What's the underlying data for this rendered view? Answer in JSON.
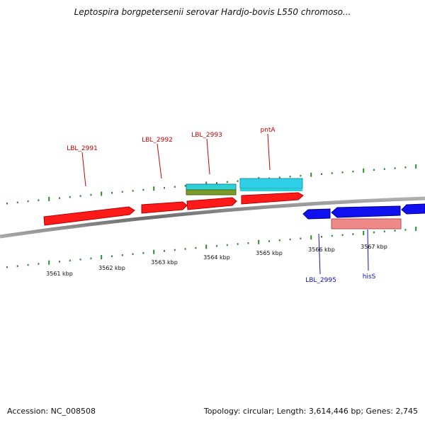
{
  "title": "Leptospira borgpetersenii serovar Hardjo-bovis L550 chromoso...",
  "footer": {
    "accession": "Accession: NC_008508",
    "summary": "Topology: circular; Length: 3,614,446 bp; Genes: 2,745"
  },
  "colors": {
    "backbone": "#8a8a8a",
    "tick": "#2e8b2e",
    "forward_cds": "#ff1a1a",
    "reverse_cds": "#1010ee",
    "rna": "#2ed0d8",
    "other": "#7a9a2a",
    "pseudo": "#f08a8a",
    "forward_label": "#cc0000",
    "reverse_label": "#1010cc"
  },
  "tick_labels": [
    "3561 kbp",
    "3562 kbp",
    "3563 kbp",
    "3564 kbp",
    "3565 kbp",
    "3566 kbp",
    "3567 kbp"
  ],
  "forward_labels": [
    "LBL_2991",
    "LBL_2992",
    "LBL_2993",
    "pntA"
  ],
  "reverse_labels": [
    "LBL_2995",
    "hisS"
  ]
}
